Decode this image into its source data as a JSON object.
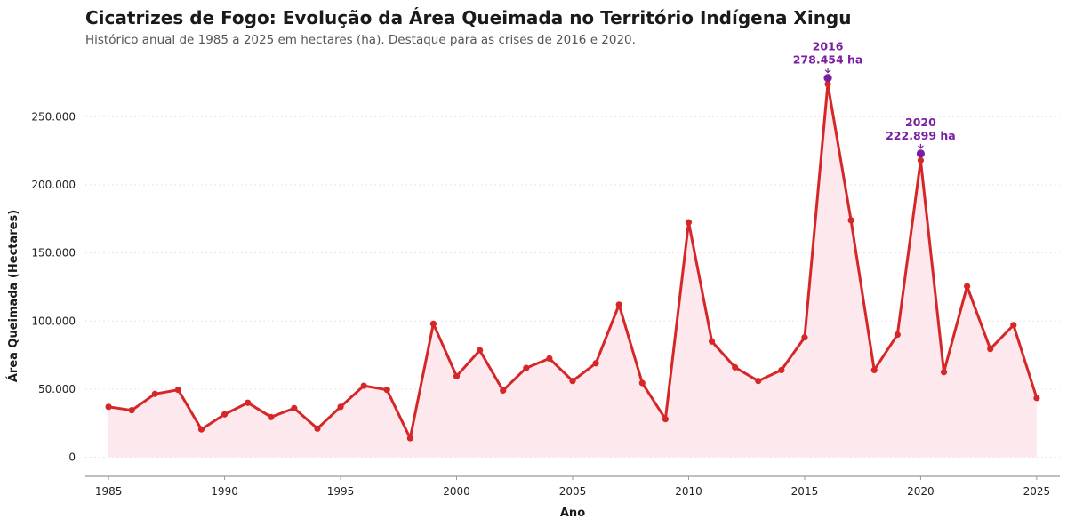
{
  "header": {
    "title": "Cicatrizes de Fogo: Evolução da Área Queimada no Território Indígena Xingu",
    "subtitle": "Histórico anual de 1985 a 2025 em hectares (ha). Destaque para as crises de 2016 e 2020."
  },
  "chart_data": {
    "type": "area",
    "title": "Cicatrizes de Fogo: Evolução da Área Queimada no Território Indígena Xingu",
    "subtitle": "Histórico anual de 1985 a 2025 em hectares (ha). Destaque para as crises de 2016 e 2020.",
    "xlabel": "Ano",
    "ylabel": "Área Queimada (Hectares)",
    "xlim": [
      1984,
      2026
    ],
    "ylim": [
      -14000,
      290000
    ],
    "x_ticks": [
      "1985",
      "1990",
      "1995",
      "2000",
      "2005",
      "2010",
      "2015",
      "2020",
      "2025"
    ],
    "y_ticks": [
      "0",
      "50.000",
      "100.000",
      "150.000",
      "200.000",
      "250.000"
    ],
    "y_tick_values": [
      0,
      50000,
      100000,
      150000,
      200000,
      250000
    ],
    "grid": "horizontal dotted",
    "x": [
      1985,
      1986,
      1987,
      1988,
      1989,
      1990,
      1991,
      1992,
      1993,
      1994,
      1995,
      1996,
      1997,
      1998,
      1999,
      2000,
      2001,
      2002,
      2003,
      2004,
      2005,
      2006,
      2007,
      2008,
      2009,
      2010,
      2011,
      2012,
      2013,
      2014,
      2015,
      2016,
      2017,
      2018,
      2019,
      2020,
      2021,
      2022,
      2023,
      2024,
      2025
    ],
    "series": [
      {
        "values": [
          37000,
          34500,
          46500,
          49500,
          20500,
          31500,
          40000,
          29500,
          36000,
          21000,
          37000,
          52500,
          49500,
          14000,
          98000,
          59500,
          78500,
          49000,
          65500,
          72500,
          56000,
          69000,
          112000,
          54500,
          28000,
          172500,
          85000,
          66000,
          56000,
          64000,
          88000,
          274000,
          174000,
          64000,
          90000,
          218000,
          62500,
          125500,
          79500,
          97000,
          43500
        ],
        "color": "#d62728",
        "fill": "#fde4ea"
      }
    ],
    "highlights": [
      {
        "year": 2016,
        "value": 278454,
        "label_year": "2016",
        "label_value": "278.454 ha",
        "color": "#7a1fa2"
      },
      {
        "year": 2020,
        "value": 222899,
        "label_year": "2020",
        "label_value": "222.899 ha",
        "color": "#7a1fa2"
      }
    ]
  }
}
